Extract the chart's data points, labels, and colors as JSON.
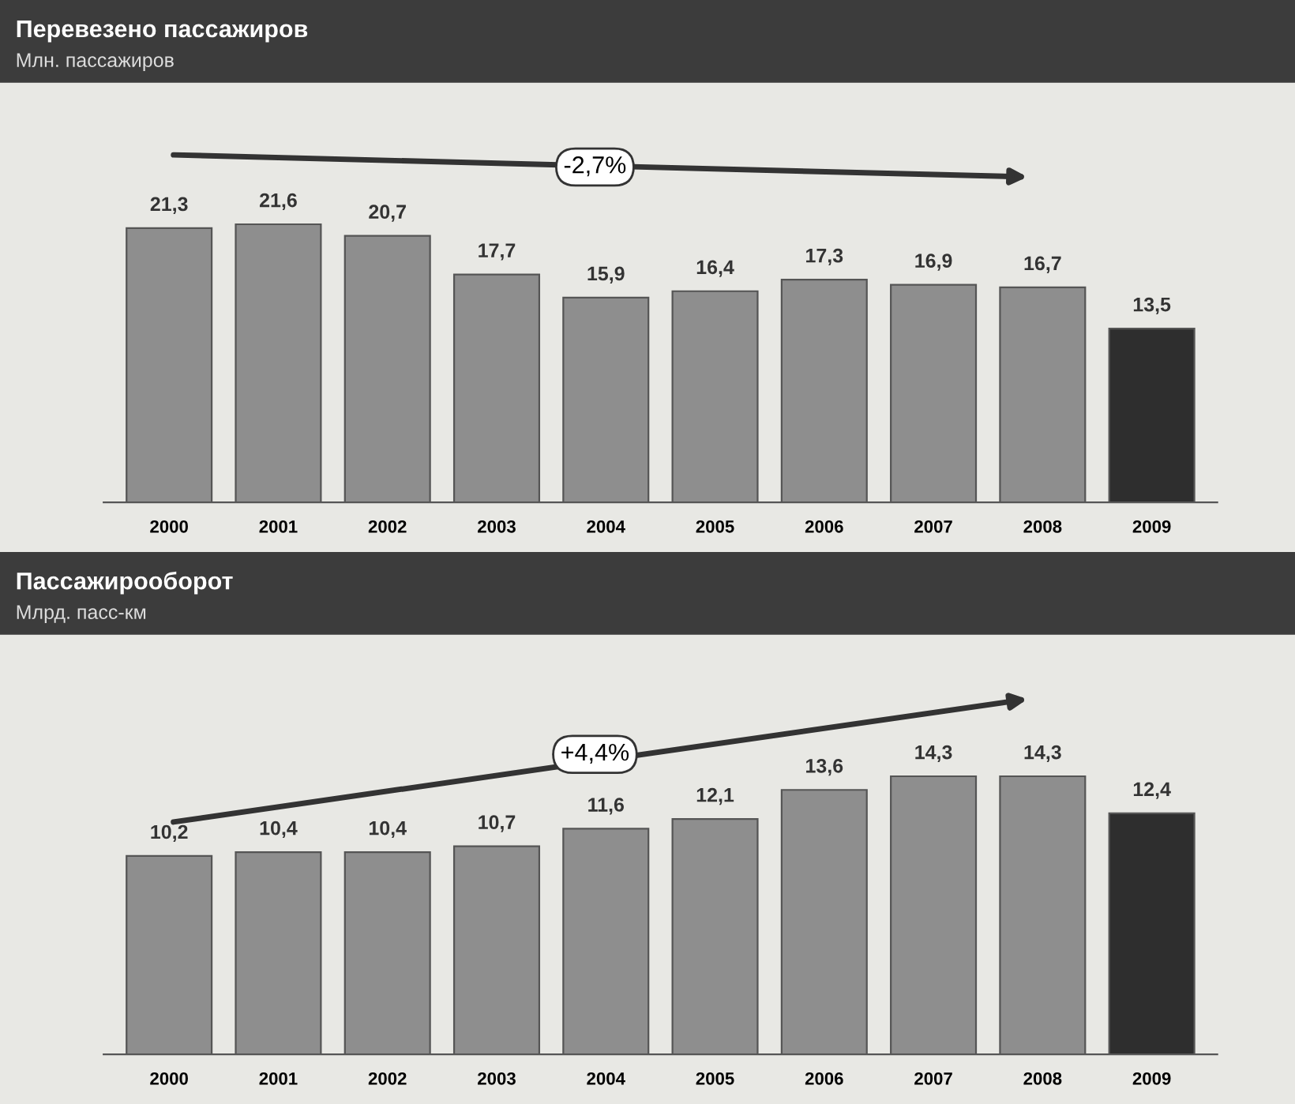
{
  "chart_data": [
    {
      "type": "bar",
      "title": "Перевезено пассажиров",
      "subtitle": "Млн. пассажиров",
      "categories": [
        "2000",
        "2001",
        "2002",
        "2003",
        "2004",
        "2005",
        "2006",
        "2007",
        "2008",
        "2009"
      ],
      "values": [
        21.3,
        21.6,
        20.7,
        17.7,
        15.9,
        16.4,
        17.3,
        16.9,
        16.7,
        13.5
      ],
      "value_labels": [
        "21,3",
        "21,6",
        "20,7",
        "17,7",
        "15,9",
        "16,4",
        "17,3",
        "16,9",
        "16,7",
        "13,5"
      ],
      "colors": [
        "#8e8e8e",
        "#8e8e8e",
        "#8e8e8e",
        "#8e8e8e",
        "#8e8e8e",
        "#8e8e8e",
        "#8e8e8e",
        "#8e8e8e",
        "#8e8e8e",
        "#2e2e2e"
      ],
      "annotations": [
        "-2,7%"
      ],
      "grid": false,
      "legend": false
    },
    {
      "type": "bar",
      "title": "Пассажирооборот",
      "subtitle": "Млрд. пасс-км",
      "categories": [
        "2000",
        "2001",
        "2002",
        "2003",
        "2004",
        "2005",
        "2006",
        "2007",
        "2008",
        "2009"
      ],
      "values": [
        10.2,
        10.4,
        10.4,
        10.7,
        11.6,
        12.1,
        13.6,
        14.3,
        14.3,
        12.4
      ],
      "value_labels": [
        "10,2",
        "10,4",
        "10,4",
        "10,7",
        "11,6",
        "12,1",
        "13,6",
        "14,3",
        "14,3",
        "12,4"
      ],
      "colors": [
        "#8e8e8e",
        "#8e8e8e",
        "#8e8e8e",
        "#8e8e8e",
        "#8e8e8e",
        "#8e8e8e",
        "#8e8e8e",
        "#8e8e8e",
        "#8e8e8e",
        "#2e2e2e"
      ],
      "annotations": [
        "+4,4%"
      ],
      "grid": false,
      "legend": false
    }
  ]
}
